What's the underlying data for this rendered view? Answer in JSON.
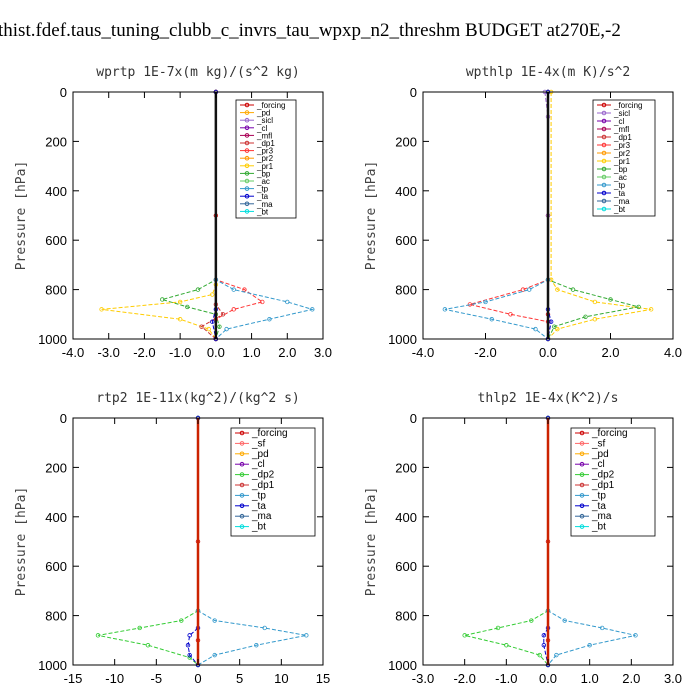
{
  "figure_title": "thist.fdef.taus_tuning_clubb_c_invrs_tau_wpxp_n2_threshm  BUDGET at270E,-2",
  "colors": {
    "_forcing": "#cc0000",
    "_pd": "#ffaa00",
    "_sicl": "#9966cc",
    "_cl": "#7700aa",
    "_mfl": "#aa0055",
    "_dp1": "#cc3333",
    "_pr3": "#ff3333",
    "_pr2": "#ff9900",
    "_pr1": "#ffcc00",
    "_bp": "#33aa33",
    "_ac": "#66cc66",
    "_tp": "#3399cc",
    "_ta": "#0000cc",
    "_ma": "#336699",
    "_bt": "#00dddd",
    "_sf": "#ff6666",
    "_dp2": "#33cc33"
  },
  "chart_data": [
    {
      "type": "line",
      "title": "wprtp   1E-7x(m kg)/(s^2 kg)",
      "ylabel": "Pressure  [hPa]",
      "xlim": [
        -4.0,
        3.0
      ],
      "ylim": [
        1000,
        0
      ],
      "xticks": [
        -4.0,
        -3.0,
        -2.0,
        -1.0,
        0.0,
        1.0,
        2.0,
        3.0
      ],
      "xtick_labels": [
        "-4.0",
        "-3.0",
        "-2.0",
        "-1.0",
        "0.0",
        "1.0",
        "2.0",
        "3.0"
      ],
      "yticks": [
        0,
        200,
        400,
        600,
        800,
        1000
      ],
      "legend": [
        "_forcing",
        "_pd",
        "_sicl",
        "_cl",
        "_mfl",
        "_dp1",
        "_pr3",
        "_pr2",
        "_pr1",
        "_bp",
        "_ac",
        "_tp",
        "_ta",
        "_ma",
        "_bt"
      ],
      "series": [
        {
          "name": "_forcing",
          "x": [
            0,
            0,
            0,
            0
          ],
          "y": [
            0,
            500,
            900,
            1000
          ]
        },
        {
          "name": "_pr1",
          "x": [
            0,
            0,
            -0.1,
            -1.0,
            -3.2,
            -1.0,
            -0.2,
            0
          ],
          "y": [
            0,
            780,
            820,
            850,
            880,
            920,
            960,
            1000
          ]
        },
        {
          "name": "_bp",
          "x": [
            0,
            0,
            -0.5,
            -1.5,
            -0.8,
            0,
            0.1,
            0
          ],
          "y": [
            0,
            760,
            800,
            840,
            870,
            900,
            950,
            1000
          ]
        },
        {
          "name": "_pr3",
          "x": [
            0,
            0,
            0.8,
            1.3,
            0.5,
            0,
            0
          ],
          "y": [
            0,
            760,
            800,
            850,
            880,
            920,
            1000
          ]
        },
        {
          "name": "_tp",
          "x": [
            0,
            0,
            0.5,
            2.0,
            2.7,
            1.5,
            0.3,
            0
          ],
          "y": [
            0,
            760,
            800,
            850,
            880,
            920,
            960,
            1000
          ]
        },
        {
          "name": "_dp1",
          "x": [
            0,
            0,
            0.2,
            -0.4,
            0
          ],
          "y": [
            0,
            860,
            900,
            950,
            1000
          ]
        },
        {
          "name": "_ta",
          "x": [
            0,
            0,
            -0.1,
            0
          ],
          "y": [
            0,
            880,
            930,
            1000
          ]
        }
      ]
    },
    {
      "type": "line",
      "title": "wpthlp   1E-4x(m K)/s^2",
      "ylabel": "Pressure  [hPa]",
      "xlim": [
        -4.0,
        4.0
      ],
      "ylim": [
        1000,
        0
      ],
      "xticks": [
        -4.0,
        -2.0,
        0.0,
        2.0,
        4.0
      ],
      "xtick_labels": [
        "-4.0",
        "-2.0",
        "0.0",
        "2.0",
        "4.0"
      ],
      "yticks": [
        0,
        200,
        400,
        600,
        800,
        1000
      ],
      "legend": [
        "_forcing",
        "_sicl",
        "_cl",
        "_mfl",
        "_dp1",
        "_pr3",
        "_pr2",
        "_pr1",
        "_bp",
        "_ac",
        "_tp",
        "_ta",
        "_ma",
        "_bt"
      ],
      "series": [
        {
          "name": "_forcing",
          "x": [
            0,
            0,
            0,
            0
          ],
          "y": [
            0,
            500,
            900,
            1000
          ]
        },
        {
          "name": "_sicl",
          "x": [
            -0.1,
            0,
            0,
            0
          ],
          "y": [
            0,
            100,
            500,
            1000
          ]
        },
        {
          "name": "_pr1",
          "x": [
            0.1,
            0.1,
            0.3,
            1.5,
            3.3,
            1.5,
            0.3,
            0
          ],
          "y": [
            0,
            760,
            800,
            850,
            880,
            920,
            960,
            1000
          ]
        },
        {
          "name": "_bp",
          "x": [
            0,
            0,
            0.8,
            2.0,
            2.9,
            1.2,
            0.2,
            0
          ],
          "y": [
            0,
            760,
            800,
            840,
            870,
            910,
            950,
            1000
          ]
        },
        {
          "name": "_pr3",
          "x": [
            0,
            0,
            -0.8,
            -2.5,
            -1.2,
            0,
            0
          ],
          "y": [
            0,
            760,
            800,
            860,
            900,
            930,
            1000
          ]
        },
        {
          "name": "_tp",
          "x": [
            0,
            0,
            -0.6,
            -2.0,
            -3.3,
            -1.8,
            -0.4,
            0
          ],
          "y": [
            0,
            760,
            800,
            850,
            880,
            920,
            960,
            1000
          ]
        },
        {
          "name": "_ta",
          "x": [
            0,
            0,
            0.1,
            0
          ],
          "y": [
            0,
            880,
            930,
            1000
          ]
        }
      ]
    },
    {
      "type": "line",
      "title": "rtp2   1E-11x(kg^2)/(kg^2 s)",
      "ylabel": "Pressure  [hPa]",
      "xlim": [
        -15,
        15
      ],
      "ylim": [
        1000,
        0
      ],
      "xticks": [
        -15,
        -10,
        -5,
        0,
        5,
        10,
        15
      ],
      "xtick_labels": [
        "-15",
        "-10",
        "-5",
        "0",
        "5",
        "10",
        "15"
      ],
      "yticks": [
        0,
        200,
        400,
        600,
        800,
        1000
      ],
      "legend": [
        "_forcing",
        "_sf",
        "_pd",
        "_cl",
        "_dp2",
        "_dp1",
        "_tp",
        "_ta",
        "_ma",
        "_bt"
      ],
      "series": [
        {
          "name": "_forcing",
          "x": [
            0,
            0,
            0,
            0
          ],
          "y": [
            0,
            500,
            900,
            1000
          ]
        },
        {
          "name": "_dp2",
          "x": [
            0,
            0,
            -2,
            -7,
            -12,
            -6,
            -1,
            0
          ],
          "y": [
            0,
            780,
            820,
            850,
            880,
            920,
            970,
            1000
          ]
        },
        {
          "name": "_tp",
          "x": [
            0,
            0,
            2,
            8,
            13,
            7,
            2,
            0
          ],
          "y": [
            0,
            780,
            820,
            850,
            880,
            920,
            960,
            1000
          ]
        },
        {
          "name": "_ta",
          "x": [
            0,
            0,
            -1,
            -1.2,
            -1,
            0
          ],
          "y": [
            0,
            850,
            880,
            920,
            960,
            1000
          ]
        }
      ]
    },
    {
      "type": "line",
      "title": "thlp2   1E-4x(K^2)/s",
      "ylabel": "Pressure  [hPa]",
      "xlim": [
        -3.0,
        3.0
      ],
      "ylim": [
        1000,
        0
      ],
      "xticks": [
        -3.0,
        -2.0,
        -1.0,
        0.0,
        1.0,
        2.0,
        3.0
      ],
      "xtick_labels": [
        "-3.0",
        "-2.0",
        "-1.0",
        "0.0",
        "1.0",
        "2.0",
        "3.0"
      ],
      "yticks": [
        0,
        200,
        400,
        600,
        800,
        1000
      ],
      "legend": [
        "_forcing",
        "_sf",
        "_pd",
        "_cl",
        "_dp2",
        "_dp1",
        "_tp",
        "_ta",
        "_ma",
        "_bt"
      ],
      "series": [
        {
          "name": "_forcing",
          "x": [
            0,
            0,
            0,
            0
          ],
          "y": [
            0,
            500,
            900,
            1000
          ]
        },
        {
          "name": "_dp2",
          "x": [
            0,
            0,
            -0.4,
            -1.2,
            -2.0,
            -1.0,
            -0.2,
            0
          ],
          "y": [
            0,
            780,
            820,
            850,
            880,
            920,
            960,
            1000
          ]
        },
        {
          "name": "_tp",
          "x": [
            0,
            0,
            0.4,
            1.3,
            2.1,
            1.0,
            0.2,
            0
          ],
          "y": [
            0,
            780,
            820,
            850,
            880,
            920,
            960,
            1000
          ]
        },
        {
          "name": "_ta",
          "x": [
            0,
            0,
            -0.1,
            -0.1,
            0
          ],
          "y": [
            0,
            850,
            880,
            920,
            1000
          ]
        }
      ]
    }
  ]
}
